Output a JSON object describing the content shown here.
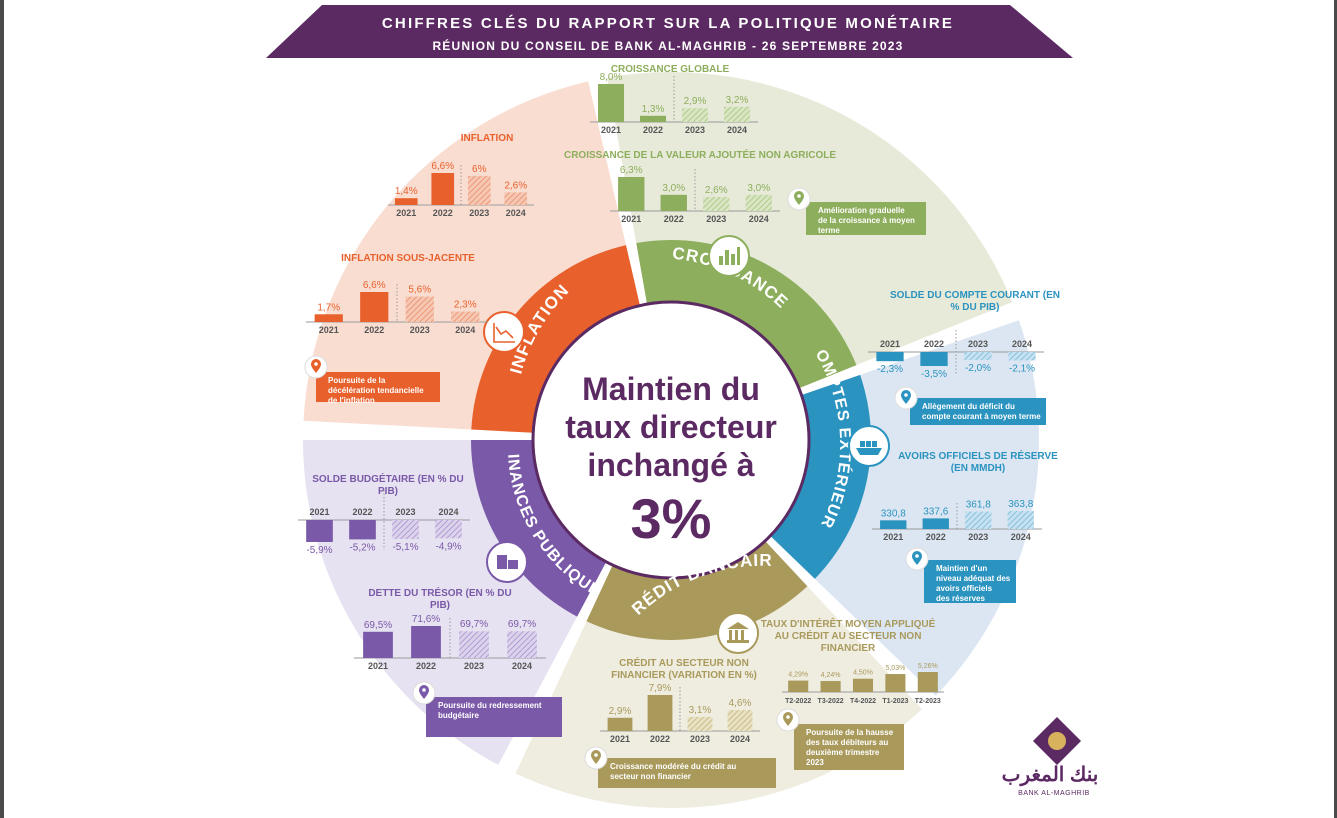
{
  "header": {
    "title": "CHIFFRES CLÉS DU RAPPORT SUR LA POLITIQUE MONÉTAIRE",
    "subtitle": "RÉUNION DU CONSEIL DE BANK AL-MAGHRIB - 26 SEPTEMBRE 2023"
  },
  "center": {
    "line1": "Maintien du",
    "line2": "taux directeur",
    "line3": "inchangé à",
    "line4": "3%"
  },
  "rings": {
    "inflation": "INFLATION",
    "croissance": "CROISSANCE",
    "comptes": "COMPTES EXTÉRIEURS",
    "credit": "CRÉDIT BANCAIRE",
    "finances": "FINANCES PUBLIQUES"
  },
  "icons": {
    "inflation": "line-chart-icon",
    "croissance": "bar-chart-icon",
    "comptes": "cargo-ship-icon",
    "credit": "bank-icon",
    "finances": "coins-icon",
    "pin": "location-pin-icon"
  },
  "colors": {
    "header": "#5c2a63",
    "inflation": "#e8612c",
    "croissance": "#8dae5c",
    "comptes": "#2a93bf",
    "credit": "#a99a5c",
    "finances": "#7a59a8",
    "center_text": "#5c2a63"
  },
  "chart_data": [
    {
      "type": "bar",
      "title": "INFLATION",
      "categories": [
        "2021",
        "2022",
        "2023",
        "2024"
      ],
      "values": [
        1.4,
        6.6,
        6,
        2.6
      ],
      "labels": [
        "1,4%",
        "6,6%",
        "6%",
        "2,6%"
      ],
      "forecast_from": 2
    },
    {
      "type": "bar",
      "title": "INFLATION SOUS-JACENTE",
      "categories": [
        "2021",
        "2022",
        "2023",
        "2024"
      ],
      "values": [
        1.7,
        6.6,
        5.6,
        2.3
      ],
      "labels": [
        "1,7%",
        "6,6%",
        "5,6%",
        "2,3%"
      ],
      "forecast_from": 2
    },
    {
      "type": "bar",
      "title": "CROISSANCE GLOBALE",
      "categories": [
        "2021",
        "2022",
        "2023",
        "2024"
      ],
      "values": [
        8.0,
        1.3,
        2.9,
        3.2
      ],
      "labels": [
        "8,0%",
        "1,3%",
        "2,9%",
        "3,2%"
      ],
      "forecast_from": 2
    },
    {
      "type": "bar",
      "title": "CROISSANCE DE LA VALEUR AJOUTÉE NON AGRICOLE",
      "categories": [
        "2021",
        "2022",
        "2023",
        "2024"
      ],
      "values": [
        6.3,
        3.0,
        2.6,
        3.0
      ],
      "labels": [
        "6,3%",
        "3,0%",
        "2,6%",
        "3,0%"
      ],
      "forecast_from": 2
    },
    {
      "type": "bar",
      "title": "SOLDE DU COMPTE COURANT (EN % DU PIB)",
      "categories": [
        "2021",
        "2022",
        "2023",
        "2024"
      ],
      "values": [
        -2.3,
        -3.5,
        -2.0,
        -2.1
      ],
      "labels": [
        "-2,3%",
        "-3,5%",
        "-2,0%",
        "-2,1%"
      ],
      "forecast_from": 2
    },
    {
      "type": "bar",
      "title": "AVOIRS OFFICIELS DE RÉSERVE (EN MMDH)",
      "categories": [
        "2021",
        "2022",
        "2023",
        "2024"
      ],
      "values": [
        330.8,
        337.6,
        361.8,
        363.8
      ],
      "labels": [
        "330,8",
        "337,6",
        "361,8",
        "363,8"
      ],
      "forecast_from": 2
    },
    {
      "type": "bar",
      "title": "TAUX D'INTÉRÊT MOYEN APPLIQUÉ AU CRÉDIT AU SECTEUR NON FINANCIER",
      "categories": [
        "T2-2022",
        "T3-2022",
        "T4-2022",
        "T1-2023",
        "T2-2023"
      ],
      "values": [
        4.29,
        4.24,
        4.5,
        5.03,
        5.26
      ],
      "labels": [
        "4,29%",
        "4,24%",
        "4,50%",
        "5,03%",
        "5,26%"
      ],
      "forecast_from": 5
    },
    {
      "type": "bar",
      "title": "CRÉDIT AU SECTEUR NON FINANCIER (VARIATION EN %)",
      "categories": [
        "2021",
        "2022",
        "2023",
        "2024"
      ],
      "values": [
        2.9,
        7.9,
        3.1,
        4.6
      ],
      "labels": [
        "2,9%",
        "7,9%",
        "3,1%",
        "4,6%"
      ],
      "forecast_from": 2
    },
    {
      "type": "bar",
      "title": "SOLDE BUDGÉTAIRE (EN % DU PIB)",
      "categories": [
        "2021",
        "2022",
        "2023",
        "2024"
      ],
      "values": [
        -5.9,
        -5.2,
        -5.1,
        -4.9
      ],
      "labels": [
        "-5,9%",
        "-5,2%",
        "-5,1%",
        "-4,9%"
      ],
      "forecast_from": 2
    },
    {
      "type": "bar",
      "title": "DETTE DU TRÉSOR (EN % DU PIB)",
      "categories": [
        "2021",
        "2022",
        "2023",
        "2024"
      ],
      "values": [
        69.5,
        71.6,
        69.7,
        69.7
      ],
      "labels": [
        "69,5%",
        "71,6%",
        "69,7%",
        "69,7%"
      ],
      "forecast_from": 2
    }
  ],
  "notes": {
    "inflation": "Poursuite de la décélération tendancielle de l'inflation",
    "croissance": "Amélioration graduelle de la croissance à moyen terme",
    "comptes_1": "Allègement du déficit du compte courant à moyen terme",
    "comptes_2": "Maintien d'un niveau adéquat des avoirs officiels des réserves",
    "credit_1": "Poursuite de la hausse des taux débiteurs au deuxième trimestre 2023",
    "credit_2": "Croissance modérée du crédit au secteur non financier",
    "finances": "Poursuite du redressement budgétaire"
  },
  "logo": {
    "arabic": "بنك المغرب",
    "latin": "BANK AL-MAGHRIB"
  }
}
